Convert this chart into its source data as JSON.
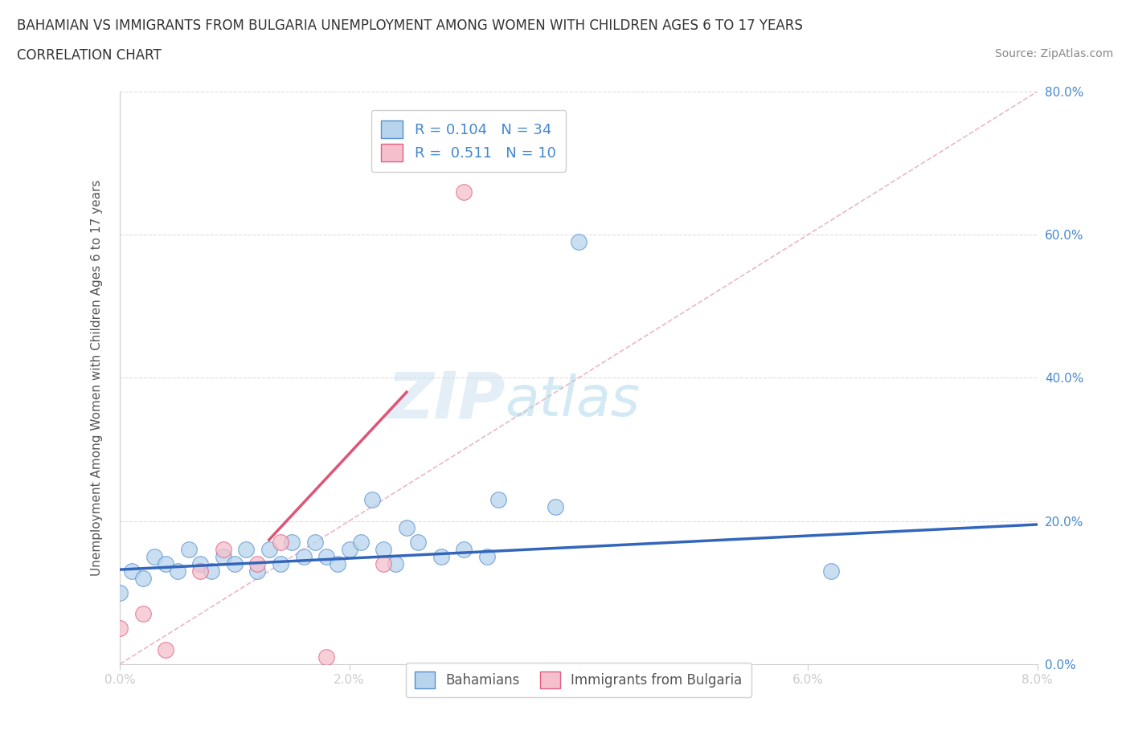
{
  "title_line1": "BAHAMIAN VS IMMIGRANTS FROM BULGARIA UNEMPLOYMENT AMONG WOMEN WITH CHILDREN AGES 6 TO 17 YEARS",
  "title_line2": "CORRELATION CHART",
  "source_text": "Source: ZipAtlas.com",
  "ylabel": "Unemployment Among Women with Children Ages 6 to 17 years",
  "xlim": [
    0.0,
    0.08
  ],
  "ylim": [
    0.0,
    0.8
  ],
  "xtick_vals": [
    0.0,
    0.02,
    0.04,
    0.06,
    0.08
  ],
  "ytick_vals": [
    0.0,
    0.2,
    0.4,
    0.6,
    0.8
  ],
  "xtick_labels": [
    "0.0%",
    "2.0%",
    "4.0%",
    "6.0%",
    "8.0%"
  ],
  "ytick_labels": [
    "0.0%",
    "20.0%",
    "40.0%",
    "60.0%",
    "80.0%"
  ],
  "blue_fill": "#b8d4ed",
  "blue_edge": "#5590cc",
  "pink_fill": "#f5c0cc",
  "pink_edge": "#e06080",
  "blue_line": "#3366bb",
  "pink_line": "#dd5577",
  "diag_color": "#cccccc",
  "grid_color": "#dddddd",
  "R_blue": 0.104,
  "N_blue": 34,
  "R_pink": 0.511,
  "N_pink": 10,
  "legend_label_blue": "Bahamians",
  "legend_label_pink": "Immigrants from Bulgaria",
  "watermark_zip": "ZIP",
  "watermark_atlas": "atlas",
  "tick_color_right": "#4488cc",
  "tick_color_bottom": "#666666",
  "title_color": "#333333",
  "source_color": "#888888",
  "ylabel_color": "#555555",
  "bahamian_x": [
    0.0,
    0.001,
    0.002,
    0.003,
    0.004,
    0.005,
    0.006,
    0.007,
    0.008,
    0.009,
    0.01,
    0.011,
    0.012,
    0.013,
    0.014,
    0.015,
    0.016,
    0.017,
    0.018,
    0.019,
    0.02,
    0.021,
    0.022,
    0.023,
    0.024,
    0.025,
    0.026,
    0.028,
    0.03,
    0.032,
    0.033,
    0.038,
    0.04,
    0.062
  ],
  "bahamian_y": [
    0.1,
    0.13,
    0.12,
    0.15,
    0.14,
    0.13,
    0.16,
    0.14,
    0.13,
    0.15,
    0.14,
    0.16,
    0.13,
    0.16,
    0.14,
    0.17,
    0.15,
    0.17,
    0.15,
    0.14,
    0.16,
    0.17,
    0.23,
    0.16,
    0.14,
    0.19,
    0.17,
    0.15,
    0.16,
    0.15,
    0.23,
    0.22,
    0.59,
    0.13
  ],
  "bulgaria_x": [
    0.0,
    0.002,
    0.004,
    0.007,
    0.009,
    0.012,
    0.014,
    0.018,
    0.023,
    0.03
  ],
  "bulgaria_y": [
    0.05,
    0.07,
    0.02,
    0.13,
    0.16,
    0.14,
    0.17,
    0.01,
    0.14,
    0.66
  ]
}
